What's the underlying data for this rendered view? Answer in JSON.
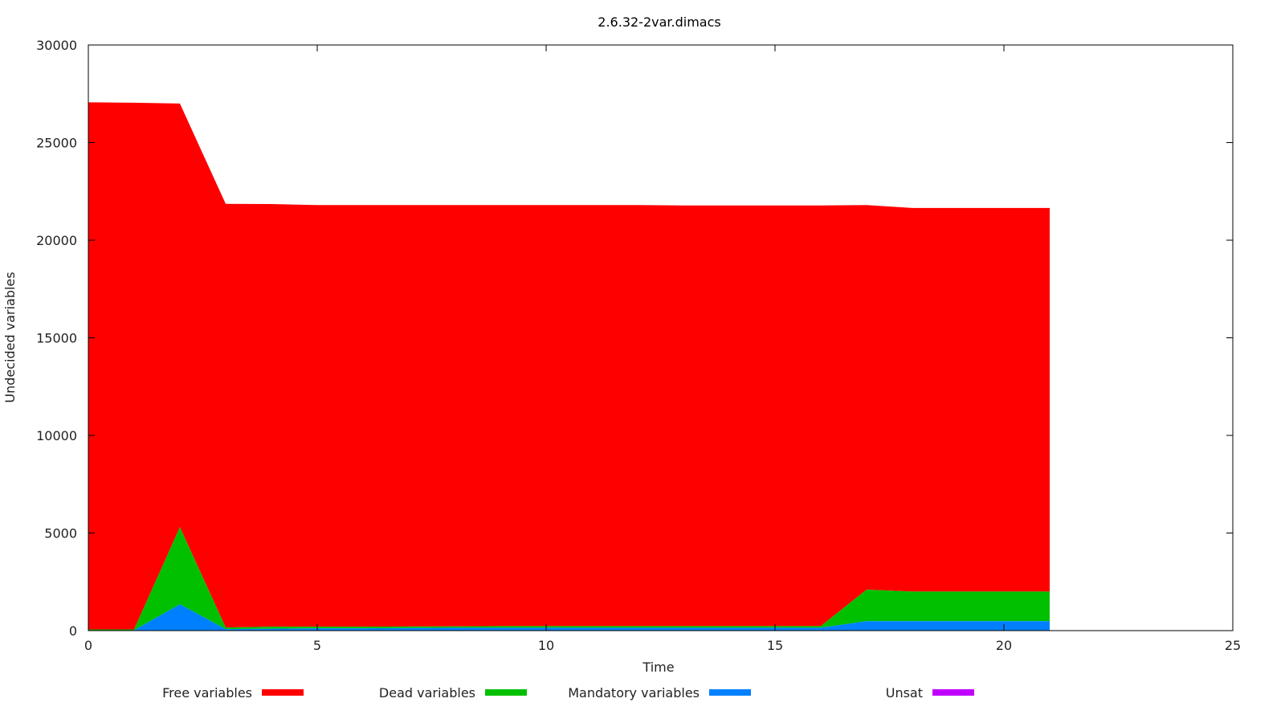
{
  "chart_data": {
    "type": "area",
    "stacked": true,
    "title": "2.6.32-2var.dimacs",
    "xlabel": "Time",
    "ylabel": "Undecided variables",
    "xlim": [
      0,
      25
    ],
    "ylim": [
      0,
      30000
    ],
    "xticks": [
      0,
      5,
      10,
      15,
      20,
      25
    ],
    "yticks": [
      0,
      5000,
      10000,
      15000,
      20000,
      25000,
      30000
    ],
    "grid": false,
    "legend_position": "bottom",
    "x": [
      0,
      1,
      2,
      3,
      4,
      5,
      6,
      7,
      8,
      9,
      10,
      11,
      12,
      13,
      14,
      15,
      16,
      17,
      18,
      19,
      20,
      21
    ],
    "series": [
      {
        "name": "Mandatory variables",
        "color": "#0080ff",
        "values": [
          20,
          20,
          1350,
          80,
          100,
          120,
          120,
          130,
          150,
          150,
          150,
          150,
          150,
          150,
          150,
          150,
          150,
          480,
          480,
          480,
          480,
          480
        ]
      },
      {
        "name": "Dead variables",
        "color": "#00c000",
        "values": [
          40,
          40,
          3950,
          80,
          100,
          80,
          80,
          80,
          70,
          80,
          80,
          80,
          80,
          80,
          80,
          80,
          80,
          1620,
          1520,
          1520,
          1520,
          1520
        ]
      },
      {
        "name": "Free variables",
        "color": "#ff0000",
        "values": [
          27000,
          26980,
          21700,
          21700,
          21650,
          21600,
          21600,
          21590,
          21580,
          21570,
          21570,
          21570,
          21570,
          21550,
          21550,
          21550,
          21550,
          19700,
          19650,
          19650,
          19650,
          19650
        ]
      },
      {
        "name": "Unsat",
        "color": "#c000ff",
        "values": [
          0,
          0,
          0,
          0,
          0,
          0,
          0,
          0,
          0,
          0,
          0,
          0,
          0,
          0,
          0,
          0,
          0,
          0,
          0,
          0,
          0,
          0
        ]
      }
    ],
    "legend_order": [
      "Free variables",
      "Dead variables",
      "Mandatory variables",
      "Unsat"
    ]
  }
}
